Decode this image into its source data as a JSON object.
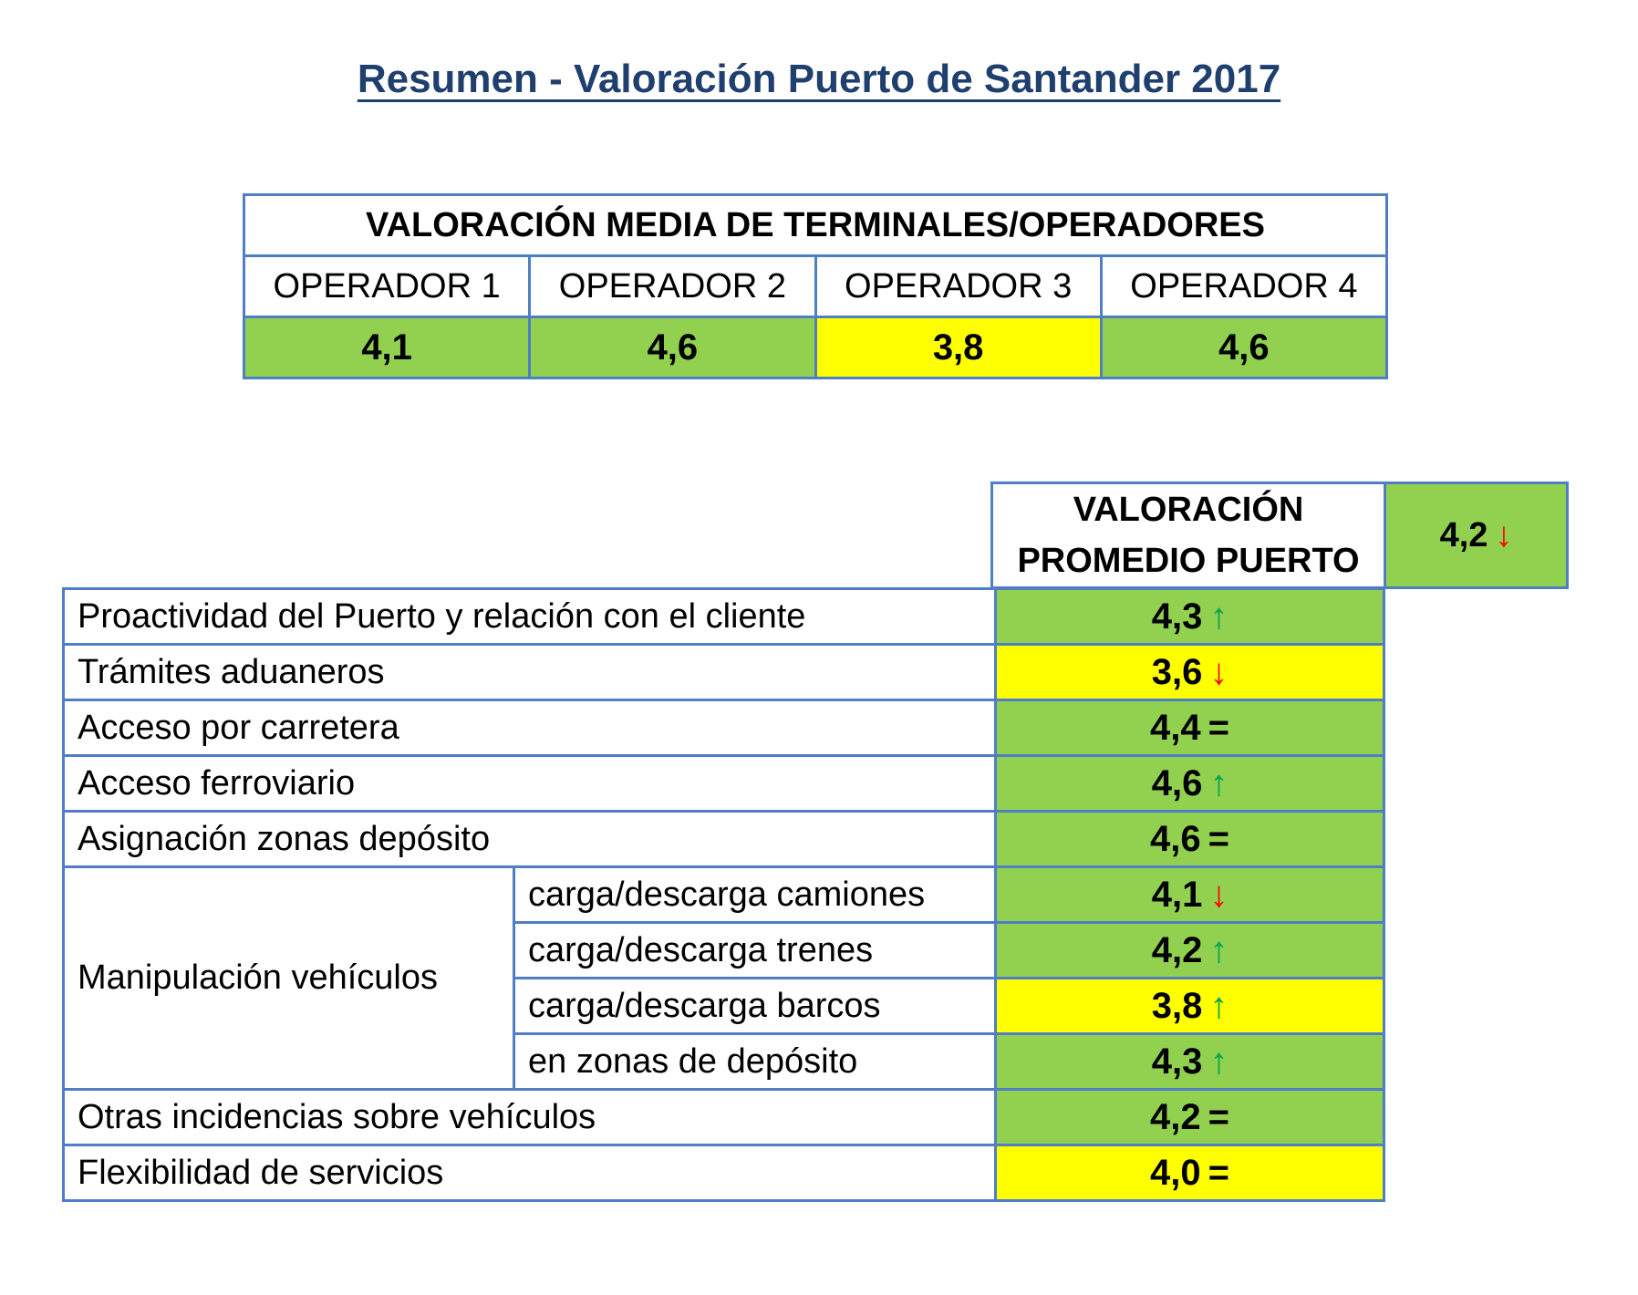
{
  "title": "Resumen - Valoración Puerto de Santander 2017",
  "operators": {
    "header": "VALORACIÓN MEDIA DE TERMINALES/OPERADORES",
    "items": [
      {
        "name": "OPERADOR 1",
        "value": "4,1",
        "color": "#92d050"
      },
      {
        "name": "OPERADOR 2",
        "value": "4,6",
        "color": "#92d050"
      },
      {
        "name": "OPERADOR 3",
        "value": "3,8",
        "color": "#ffff00"
      },
      {
        "name": "OPERADOR 4",
        "value": "4,6",
        "color": "#92d050"
      }
    ]
  },
  "promedio": {
    "header": "VALORACIÓN PROMEDIO PUERTO",
    "total": {
      "value": "4,2",
      "trend": "↓",
      "trend_type": "down",
      "color": "#92d050"
    }
  },
  "rows": [
    {
      "label": "Proactividad del Puerto y relación con el cliente",
      "value": "4,3",
      "trend": "↑",
      "trend_type": "up",
      "color": "#92d050"
    },
    {
      "label": "Trámites aduaneros",
      "value": "3,6",
      "trend": "↓",
      "trend_type": "down",
      "color": "#ffff00"
    },
    {
      "label": "Acceso por carretera",
      "value": "4,4",
      "trend": "=",
      "trend_type": "eq",
      "color": "#92d050"
    },
    {
      "label": "Acceso ferroviario",
      "value": "4,6",
      "trend": "↑",
      "trend_type": "up",
      "color": "#92d050"
    },
    {
      "label": "Asignación zonas depósito",
      "value": "4,6",
      "trend": "=",
      "trend_type": "eq",
      "color": "#92d050"
    }
  ],
  "manipulacion": {
    "label": "Manipulación vehículos",
    "subrows": [
      {
        "label": "carga/descarga camiones",
        "value": "4,1",
        "trend": "↓",
        "trend_type": "down",
        "color": "#92d050"
      },
      {
        "label": "carga/descarga trenes",
        "value": "4,2",
        "trend": "↑",
        "trend_type": "up",
        "color": "#92d050"
      },
      {
        "label": "carga/descarga barcos",
        "value": "3,8",
        "trend": "↑",
        "trend_type": "up",
        "color": "#ffff00"
      },
      {
        "label": "en zonas de depósito",
        "value": "4,3",
        "trend": "↑",
        "trend_type": "up",
        "color": "#92d050"
      }
    ]
  },
  "rows_after": [
    {
      "label": "Otras incidencias sobre vehículos",
      "value": "4,2",
      "trend": "=",
      "trend_type": "eq",
      "color": "#92d050"
    },
    {
      "label": "Flexibilidad de servicios",
      "value": "4,0",
      "trend": "=",
      "trend_type": "eq",
      "color": "#ffff00"
    }
  ]
}
